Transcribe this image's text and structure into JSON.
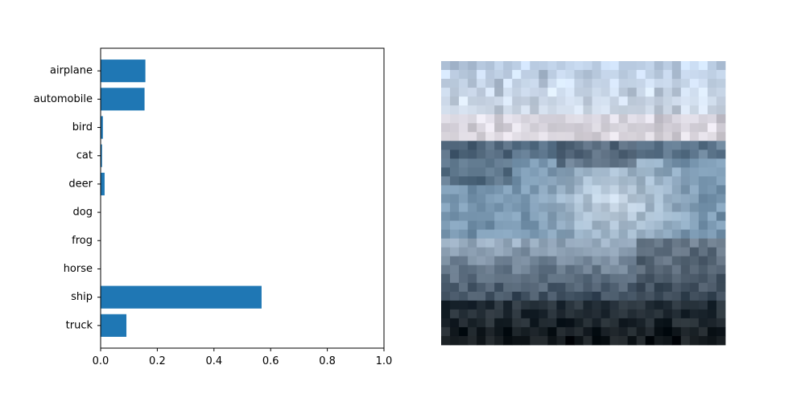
{
  "chart_data": [
    {
      "type": "bar",
      "orientation": "horizontal",
      "categories": [
        "airplane",
        "automobile",
        "bird",
        "cat",
        "deer",
        "dog",
        "frog",
        "horse",
        "ship",
        "truck"
      ],
      "values": [
        0.158,
        0.155,
        0.008,
        0.005,
        0.014,
        0.001,
        0.001,
        0.001,
        0.568,
        0.091
      ],
      "xlim": [
        0,
        1.0
      ],
      "xticks": [
        "0.0",
        "0.2",
        "0.4",
        "0.6",
        "0.8",
        "1.0"
      ],
      "title": "",
      "xlabel": "",
      "ylabel": "",
      "grid": false,
      "bar_color": "#1f77b4"
    }
  ],
  "image_panel": {
    "content": "low-resolution (32x32) photo of a boat on water",
    "grid_size": 32
  }
}
